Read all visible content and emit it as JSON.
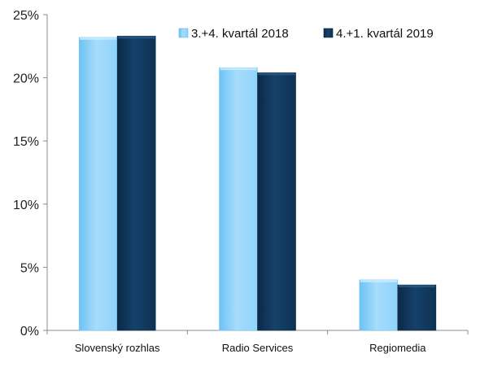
{
  "chart_data": {
    "type": "bar",
    "categories": [
      "Slovenský rozhlas",
      "Radio Services",
      "Regiomedia"
    ],
    "series": [
      {
        "name": "3.+4. kvartál 2018",
        "values": [
          23.2,
          20.8,
          4.0
        ],
        "color": "#8fd3fb"
      },
      {
        "name": "4.+1. kvartál 2019",
        "values": [
          23.3,
          20.4,
          3.6
        ],
        "color": "#0e3253"
      }
    ],
    "ylim": [
      0,
      25
    ],
    "yticks": [
      0,
      5,
      10,
      15,
      20,
      25
    ],
    "ytick_labels": [
      "0%",
      "5%",
      "10%",
      "15%",
      "20%",
      "25%"
    ],
    "title": "",
    "xlabel": "",
    "ylabel": "",
    "grid": false,
    "legend_position": "top-right"
  }
}
